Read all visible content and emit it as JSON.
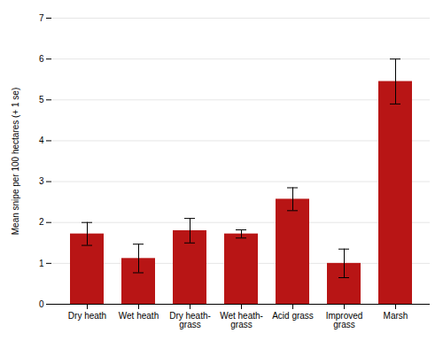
{
  "chart_data": {
    "type": "bar",
    "categories": [
      "Dry heath",
      "Wet heath",
      "Dry heath-\ngrass",
      "Wet heath-\ngrass",
      "Acid grass",
      "Improved\ngrass",
      "Marsh"
    ],
    "values": [
      1.72,
      1.12,
      1.8,
      1.72,
      2.57,
      1.0,
      5.45
    ],
    "errors": [
      0.28,
      0.35,
      0.3,
      0.1,
      0.28,
      0.35,
      0.55
    ],
    "color": "#b81515",
    "ylabel": "Mean snipe per 100 hectares (+ 1 se)",
    "ylim": [
      0,
      7
    ],
    "yticks": [
      0,
      1,
      2,
      3,
      4,
      5,
      6,
      7
    ],
    "grid": true
  }
}
